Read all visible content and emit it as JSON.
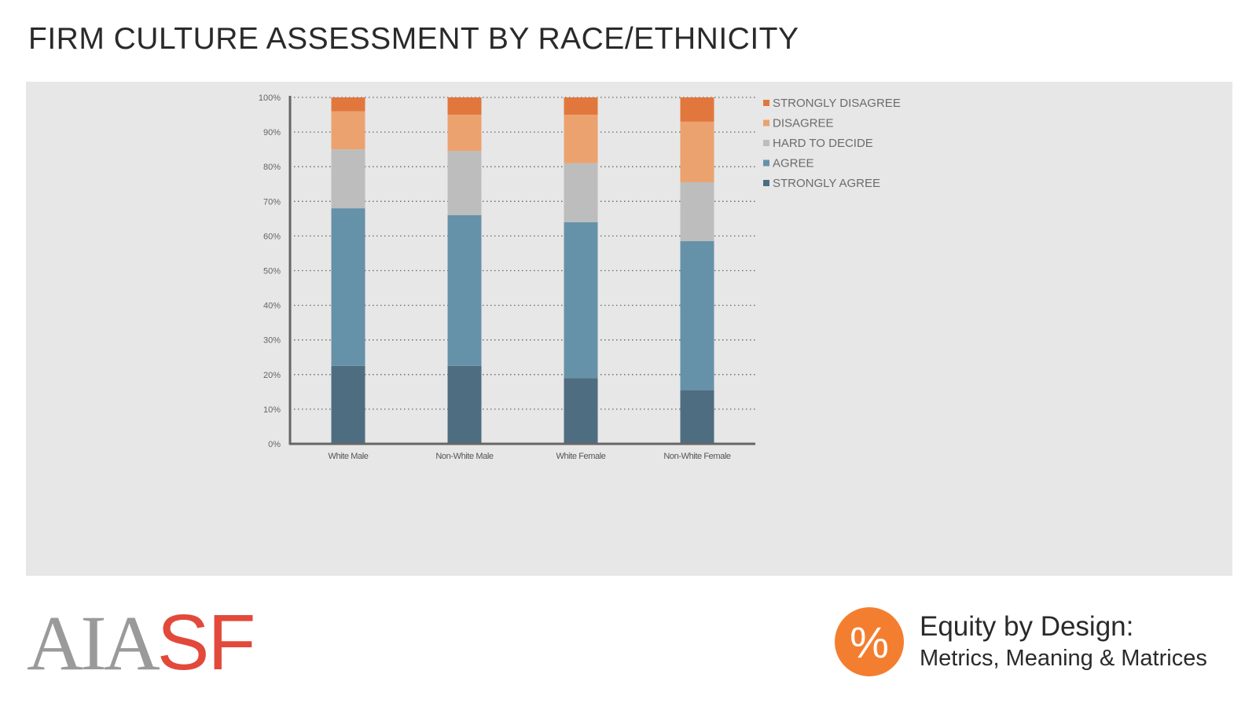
{
  "title": "FIRM CULTURE ASSESSMENT BY RACE/ETHNICITY",
  "colors": {
    "strongly_disagree": "#e2773d",
    "disagree": "#eba26f",
    "hard_to_decide": "#bdbdbd",
    "agree": "#6592a8",
    "strongly_agree": "#4e6d81",
    "panel": "#e7e7e7",
    "logo_gray": "#9a9a9a",
    "logo_red": "#e2493a",
    "badge_orange": "#f47e2f"
  },
  "chart_data": {
    "type": "bar",
    "stacked": true,
    "categories": [
      "White Male",
      "Non-White Male",
      "White Female",
      "Non-White Female"
    ],
    "series": [
      {
        "name": "STRONGLY AGREE",
        "color": "#4e6d81",
        "values": [
          22.5,
          22.5,
          19,
          15.5
        ]
      },
      {
        "name": "AGREE",
        "color": "#6592a8",
        "values": [
          45.5,
          43.5,
          45,
          43
        ]
      },
      {
        "name": "HARD TO DECIDE",
        "color": "#bdbdbd",
        "values": [
          17,
          18.5,
          17,
          17
        ]
      },
      {
        "name": "DISAGREE",
        "color": "#eba26f",
        "values": [
          11,
          10.5,
          14,
          17.5
        ]
      },
      {
        "name": "STRONGLY DISAGREE",
        "color": "#e2773d",
        "values": [
          4,
          5,
          5,
          7
        ]
      }
    ],
    "legend": [
      "STRONGLY DISAGREE",
      "DISAGREE",
      "HARD TO DECIDE",
      "AGREE",
      "STRONGLY AGREE"
    ],
    "legend_placement": "right",
    "yticks": [
      "0%",
      "10%",
      "20%",
      "30%",
      "40%",
      "50%",
      "60%",
      "70%",
      "80%",
      "90%",
      "100%"
    ],
    "ylim": [
      0,
      100
    ],
    "grid": true,
    "grid_style": "dotted"
  },
  "footer": {
    "logo_aia": "AIA",
    "logo_sf": "SF",
    "badge_symbol": "%",
    "equity_title": "Equity by Design:",
    "equity_subtitle": "Metrics, Meaning & Matrices"
  }
}
